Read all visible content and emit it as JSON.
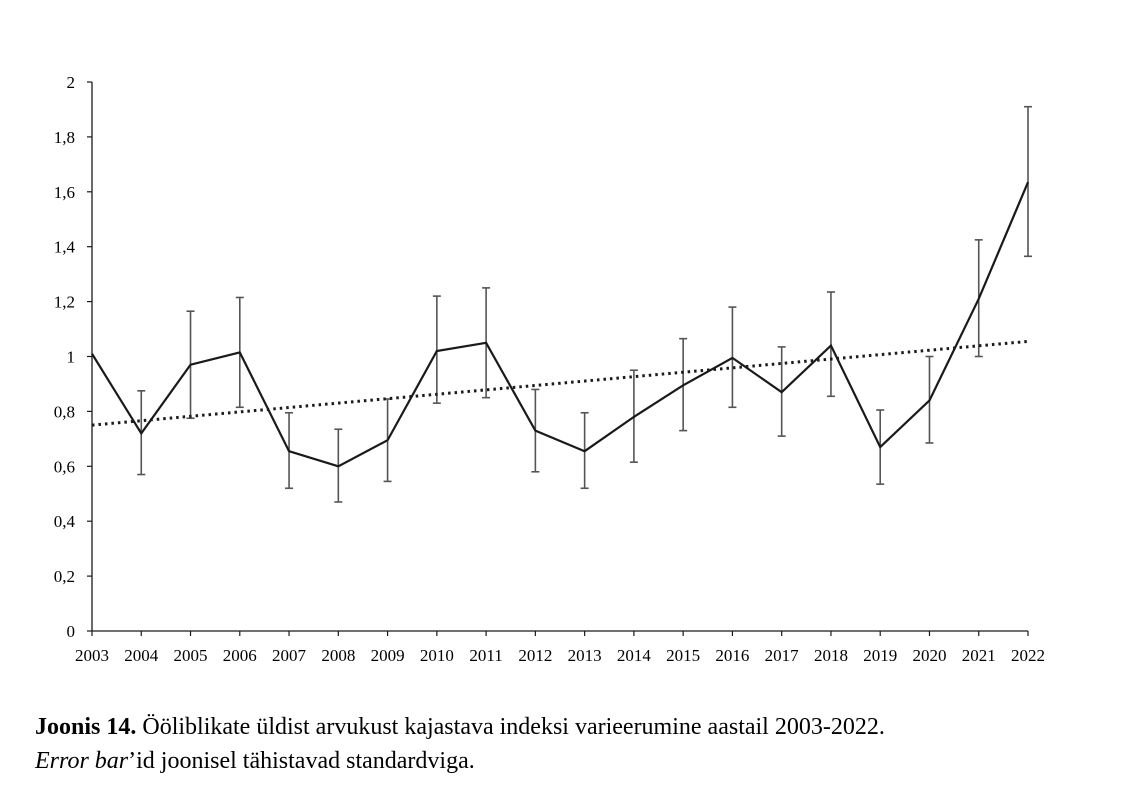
{
  "chart_data": {
    "type": "line",
    "x": [
      "2003",
      "2004",
      "2005",
      "2006",
      "2007",
      "2008",
      "2009",
      "2010",
      "2011",
      "2012",
      "2013",
      "2014",
      "2015",
      "2016",
      "2017",
      "2018",
      "2019",
      "2020",
      "2021",
      "2022"
    ],
    "series": [
      {
        "values": [
          1.01,
          0.72,
          0.97,
          1.015,
          0.655,
          0.6,
          0.695,
          1.02,
          1.05,
          0.73,
          0.655,
          0.78,
          0.895,
          0.995,
          0.87,
          1.04,
          0.67,
          0.84,
          1.21,
          1.635
        ],
        "error_low": [
          null,
          0.57,
          0.775,
          0.815,
          0.52,
          0.47,
          0.545,
          0.83,
          0.85,
          0.58,
          0.52,
          0.615,
          0.73,
          0.815,
          0.71,
          0.855,
          0.535,
          0.685,
          1.0,
          1.365
        ],
        "error_high": [
          null,
          0.875,
          1.165,
          1.215,
          0.795,
          0.735,
          0.845,
          1.22,
          1.25,
          0.88,
          0.795,
          0.95,
          1.065,
          1.18,
          1.035,
          1.235,
          0.805,
          1.0,
          1.425,
          1.91
        ],
        "color": "#1a1a1a"
      }
    ],
    "trendline": {
      "style": "dotted",
      "start": 0.75,
      "end": 1.055,
      "color": "#1a1a1a"
    },
    "ylim": [
      0,
      2
    ],
    "yticks": [
      0,
      0.2,
      0.4,
      0.6,
      0.8,
      1,
      1.2,
      1.4,
      1.6,
      1.8,
      2
    ],
    "ytick_labels": [
      "0",
      "0,2",
      "0,4",
      "0,6",
      "0,8",
      "1",
      "1,2",
      "1,4",
      "1,6",
      "1,8",
      "2"
    ],
    "grid": false,
    "legend": "none"
  },
  "caption": {
    "label": "Joonis 14.",
    "text1": " Ööliblikate üldist arvukust kajastava indeksi varieerumine aastail 2003-2022.",
    "italic": "Error bar",
    "text2": "’id joonisel tähistavad standardviga."
  }
}
